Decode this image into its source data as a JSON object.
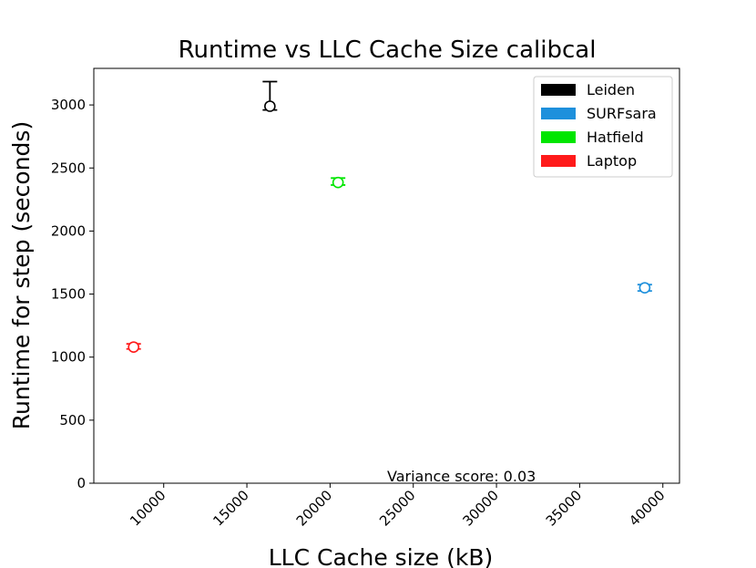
{
  "chart_data": {
    "type": "scatter",
    "title": "Runtime vs LLC Cache Size calibcal",
    "xlabel": "LLC Cache size (kB)",
    "ylabel": "Runtime for step (seconds)",
    "xlim": [
      5800,
      41000
    ],
    "ylim": [
      0,
      3290
    ],
    "xticks": [
      "10000",
      "15000",
      "20000",
      "25000",
      "30000",
      "35000",
      "40000"
    ],
    "yticks": [
      "0",
      "500",
      "1000",
      "1500",
      "2000",
      "2500",
      "3000"
    ],
    "grid": false,
    "legend_position": "top-right",
    "series": [
      {
        "name": "Leiden",
        "color": "#000000",
        "points": [
          {
            "x": 16384,
            "y": 2990,
            "err_low": 2960,
            "err_high": 3185
          }
        ]
      },
      {
        "name": "SURFsara",
        "color": "#1e90dc",
        "points": [
          {
            "x": 38912,
            "y": 1550,
            "err_low": 1525,
            "err_high": 1575
          }
        ]
      },
      {
        "name": "Hatfield",
        "color": "#00e600",
        "points": [
          {
            "x": 20480,
            "y": 2385,
            "err_low": 2365,
            "err_high": 2420
          }
        ]
      },
      {
        "name": "Laptop",
        "color": "#ff1a1a",
        "points": [
          {
            "x": 8192,
            "y": 1080,
            "err_low": 1065,
            "err_high": 1105
          }
        ]
      }
    ],
    "annotation": "Variance score: 0.03"
  }
}
